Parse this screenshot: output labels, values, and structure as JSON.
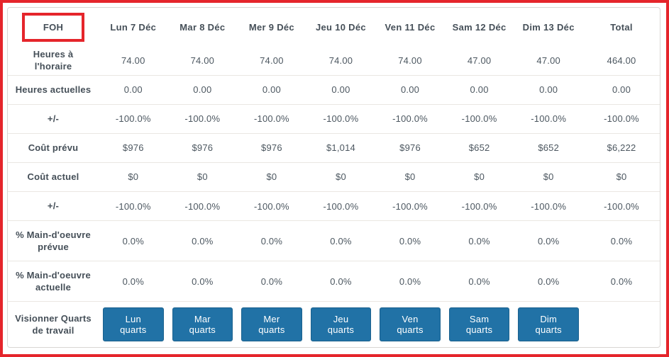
{
  "panel": {
    "group_label": "FOH",
    "columns": [
      "Lun 7 Déc",
      "Mar 8 Déc",
      "Mer 9 Déc",
      "Jeu 10 Déc",
      "Ven 11 Déc",
      "Sam 12 Déc",
      "Dim 13 Déc",
      "Total"
    ],
    "rows": [
      {
        "label": "Heures à l'horaire",
        "values": [
          "74.00",
          "74.00",
          "74.00",
          "74.00",
          "74.00",
          "47.00",
          "47.00",
          "464.00"
        ]
      },
      {
        "label": "Heures actuelles",
        "values": [
          "0.00",
          "0.00",
          "0.00",
          "0.00",
          "0.00",
          "0.00",
          "0.00",
          "0.00"
        ]
      },
      {
        "label": "+/-",
        "values": [
          "-100.0%",
          "-100.0%",
          "-100.0%",
          "-100.0%",
          "-100.0%",
          "-100.0%",
          "-100.0%",
          "-100.0%"
        ]
      },
      {
        "label": "Coût prévu",
        "values": [
          "$976",
          "$976",
          "$976",
          "$1,014",
          "$976",
          "$652",
          "$652",
          "$6,222"
        ]
      },
      {
        "label": "Coût actuel",
        "values": [
          "$0",
          "$0",
          "$0",
          "$0",
          "$0",
          "$0",
          "$0",
          "$0"
        ]
      },
      {
        "label": "+/-",
        "values": [
          "-100.0%",
          "-100.0%",
          "-100.0%",
          "-100.0%",
          "-100.0%",
          "-100.0%",
          "-100.0%",
          "-100.0%"
        ]
      },
      {
        "label": "% Main-d'oeuvre prévue",
        "values": [
          "0.0%",
          "0.0%",
          "0.0%",
          "0.0%",
          "0.0%",
          "0.0%",
          "0.0%",
          "0.0%"
        ]
      },
      {
        "label": "% Main-d'oeuvre actuelle",
        "values": [
          "0.0%",
          "0.0%",
          "0.0%",
          "0.0%",
          "0.0%",
          "0.0%",
          "0.0%",
          "0.0%"
        ]
      }
    ],
    "shifts_row": {
      "label": "Visionner Quarts de travail",
      "buttons": [
        "Lun quarts",
        "Mar quarts",
        "Mer quarts",
        "Jeu quarts",
        "Ven quarts",
        "Sam quarts",
        "Dim quarts"
      ]
    },
    "colors": {
      "annotation_red": "#e5252b",
      "button_blue": "#2172a6",
      "text_dark": "#454f58",
      "divider": "#eae7e2"
    }
  }
}
